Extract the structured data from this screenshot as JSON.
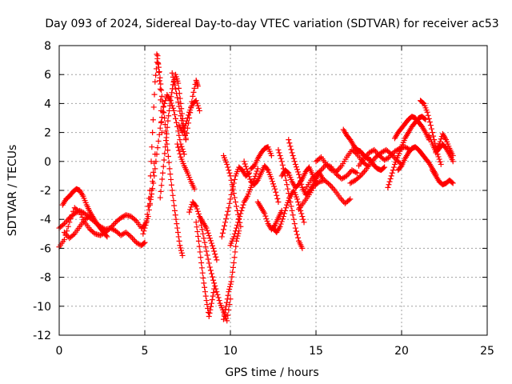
{
  "chart_data": {
    "type": "scatter",
    "title": "Day 093 of 2024, Sidereal Day-to-day VTEC variation (SDTVAR) for receiver ac53",
    "xlabel": "GPS time / hours",
    "ylabel": "SDTVAR / TECUs",
    "xlim": [
      0,
      25
    ],
    "ylim": [
      -12,
      8
    ],
    "xticks": [
      0,
      5,
      10,
      15,
      20,
      25
    ],
    "yticks": [
      -12,
      -10,
      -8,
      -6,
      -4,
      -2,
      0,
      2,
      4,
      6,
      8
    ],
    "xtick_labels": [
      "0",
      "5",
      "10",
      "15",
      "20",
      "25"
    ],
    "ytick_labels": [
      "-12",
      "-10",
      "-8",
      "-6",
      "-4",
      "-2",
      "0",
      "2",
      "4",
      "6",
      "8"
    ],
    "grid": true,
    "marker": "plus",
    "series_color": "#ff0000",
    "series": [
      {
        "name": "SDTVAR",
        "tracks": [
          {
            "x": [
              0.0,
              0.3,
              0.6,
              0.9,
              1.2,
              1.5,
              1.8,
              2.1,
              2.4,
              2.7,
              3.0,
              3.3,
              3.6,
              3.9,
              4.2,
              4.5,
              4.8,
              5.0,
              5.2,
              5.4,
              5.6
            ],
            "y": [
              -4.6,
              -4.3,
              -3.9,
              -3.6,
              -3.4,
              -3.6,
              -3.9,
              -4.2,
              -4.5,
              -4.7,
              -4.6,
              -4.2,
              -3.9,
              -3.7,
              -3.8,
              -4.1,
              -4.6,
              -4.4,
              -3.8,
              -2.0,
              0.5
            ]
          },
          {
            "x": [
              0.0,
              0.3,
              0.6,
              0.9,
              1.2,
              1.5,
              1.8,
              2.1,
              2.4,
              2.7,
              3.0,
              3.3,
              3.6,
              3.9,
              4.2,
              4.5,
              4.8,
              5.0
            ],
            "y": [
              -5.9,
              -5.4,
              -4.2,
              -3.2,
              -3.5,
              -4.2,
              -4.7,
              -5.0,
              -5.1,
              -4.9,
              -4.6,
              -4.8,
              -5.1,
              -4.9,
              -5.2,
              -5.6,
              -5.8,
              -5.6
            ]
          },
          {
            "x": [
              0.2,
              0.4,
              0.6,
              0.8,
              1.0,
              1.2,
              1.4,
              1.6,
              1.8,
              2.0,
              2.2,
              2.4,
              2.6,
              2.8
            ],
            "y": [
              -3.0,
              -2.6,
              -2.4,
              -2.1,
              -1.9,
              -2.0,
              -2.4,
              -3.0,
              -3.5,
              -3.9,
              -4.3,
              -4.6,
              -4.9,
              -5.2
            ]
          },
          {
            "x": [
              0.3,
              0.6,
              0.9,
              1.2,
              1.5,
              1.8
            ],
            "y": [
              -4.9,
              -5.3,
              -5.0,
              -4.5,
              -4.0,
              -3.8
            ]
          },
          {
            "x": [
              4.9,
              5.1,
              5.3,
              5.45,
              5.6,
              5.75,
              5.9,
              6.0
            ],
            "y": [
              -5.0,
              -4.2,
              -2.0,
              2.0,
              5.5,
              7.3,
              5.0,
              2.0
            ]
          },
          {
            "x": [
              5.7,
              5.85,
              6.0,
              6.15,
              6.3,
              6.45,
              6.6,
              6.75,
              6.9,
              7.05,
              7.2
            ],
            "y": [
              7.4,
              6.2,
              4.5,
              3.0,
              1.2,
              -0.5,
              -2.0,
              -3.4,
              -4.6,
              -5.8,
              -6.5
            ]
          },
          {
            "x": [
              5.3,
              5.5,
              5.7,
              5.9,
              6.1,
              6.3,
              6.5,
              6.7,
              6.9,
              7.1,
              7.3
            ],
            "y": [
              -3.0,
              -1.5,
              0.5,
              2.3,
              3.8,
              4.6,
              4.2,
              3.5,
              2.4,
              1.2,
              0.5
            ]
          },
          {
            "x": [
              5.9,
              6.05,
              6.2,
              6.35,
              6.5,
              6.65,
              6.8,
              6.95,
              7.1,
              7.25,
              7.4
            ],
            "y": [
              -2.5,
              -0.8,
              1.0,
              2.8,
              4.2,
              5.3,
              6.0,
              5.4,
              4.0,
              2.6,
              1.5
            ]
          },
          {
            "x": [
              6.6,
              6.8,
              7.0,
              7.2,
              7.4,
              7.6,
              7.8,
              8.0,
              8.1
            ],
            "y": [
              6.1,
              5.0,
              3.8,
              2.5,
              1.6,
              3.0,
              4.5,
              5.6,
              5.2
            ]
          },
          {
            "x": [
              7.0,
              7.2,
              7.4,
              7.6,
              7.8,
              8.0,
              8.2
            ],
            "y": [
              2.5,
              2.0,
              2.6,
              3.4,
              4.0,
              4.2,
              3.5
            ]
          },
          {
            "x": [
              6.9,
              7.1,
              7.3,
              7.5,
              7.7,
              7.9
            ],
            "y": [
              1.2,
              0.3,
              -0.3,
              -0.8,
              -1.4,
              -1.9
            ]
          },
          {
            "x": [
              7.6,
              7.8,
              8.0,
              8.2,
              8.4,
              8.6,
              8.8,
              9.0,
              9.2
            ],
            "y": [
              -3.5,
              -2.8,
              -3.1,
              -3.8,
              -4.2,
              -4.6,
              -5.3,
              -6.0,
              -6.8
            ]
          },
          {
            "x": [
              8.0,
              8.15,
              8.3,
              8.45,
              8.6,
              8.75,
              8.9,
              9.05
            ],
            "y": [
              -4.2,
              -5.5,
              -7.0,
              -8.4,
              -9.6,
              -10.7,
              -9.8,
              -8.8
            ]
          },
          {
            "x": [
              8.2,
              8.4,
              8.6,
              8.8,
              9.0,
              9.2,
              9.4,
              9.6,
              9.8,
              10.0
            ],
            "y": [
              -3.8,
              -5.0,
              -6.2,
              -7.3,
              -8.2,
              -9.0,
              -9.8,
              -10.4,
              -11.0,
              -9.5
            ]
          },
          {
            "x": [
              9.6,
              9.75,
              9.9,
              10.05,
              10.2,
              10.35,
              10.5
            ],
            "y": [
              -10.9,
              -10.0,
              -9.0,
              -8.3,
              -7.0,
              -5.5,
              -4.8
            ]
          },
          {
            "x": [
              9.5,
              9.7,
              9.9,
              10.1,
              10.3,
              10.5,
              10.7,
              10.9,
              11.1
            ],
            "y": [
              -5.2,
              -4.2,
              -3.2,
              -2.0,
              -1.0,
              -0.4,
              -0.6,
              -1.0,
              -0.8
            ]
          },
          {
            "x": [
              9.6,
              9.8,
              10.0,
              10.2,
              10.4,
              10.6
            ],
            "y": [
              0.4,
              -0.2,
              -1.0,
              -2.2,
              -3.4,
              -4.5
            ]
          },
          {
            "x": [
              10.0,
              10.2,
              10.4,
              10.6,
              10.8,
              11.0,
              11.2,
              11.4,
              11.6
            ],
            "y": [
              -5.8,
              -5.2,
              -4.4,
              -3.6,
              -2.8,
              -2.4,
              -1.8,
              -1.2,
              -0.5
            ]
          },
          {
            "x": [
              10.8,
              11.0,
              11.2,
              11.4,
              11.6,
              11.8,
              12.0,
              12.2,
              12.4,
              12.6,
              12.8
            ],
            "y": [
              0.0,
              -0.7,
              -1.4,
              -1.6,
              -1.3,
              -0.8,
              -0.3,
              -0.6,
              -1.2,
              -1.9,
              -2.8
            ]
          },
          {
            "x": [
              11.2,
              11.4,
              11.6,
              11.8,
              12.0,
              12.2,
              12.4
            ],
            "y": [
              -0.5,
              -0.3,
              0.2,
              0.6,
              0.9,
              1.0,
              0.4
            ]
          },
          {
            "x": [
              11.6,
              11.8,
              12.0,
              12.2,
              12.4,
              12.6,
              12.8,
              13.0
            ],
            "y": [
              -2.8,
              -3.2,
              -3.6,
              -4.3,
              -4.7,
              -4.4,
              -3.9,
              -3.4
            ]
          },
          {
            "x": [
              12.8,
              13.0,
              13.2,
              13.4,
              13.6,
              13.8,
              14.0,
              14.2
            ],
            "y": [
              0.8,
              0.0,
              -1.0,
              -2.2,
              -3.4,
              -4.6,
              -5.5,
              -6.0
            ]
          },
          {
            "x": [
              12.5,
              12.7,
              12.9,
              13.1,
              13.3,
              13.5,
              13.7,
              13.9,
              14.1,
              14.3
            ],
            "y": [
              -4.6,
              -4.9,
              -4.5,
              -3.8,
              -3.0,
              -2.4,
              -2.0,
              -2.6,
              -3.4,
              -4.2
            ]
          },
          {
            "x": [
              13.0,
              13.2,
              13.4,
              13.6,
              13.8,
              14.0,
              14.2,
              14.4,
              14.6,
              14.8,
              15.0
            ],
            "y": [
              -1.0,
              -0.6,
              -0.8,
              -1.4,
              -1.8,
              -1.6,
              -1.2,
              -0.7,
              -0.4,
              -0.9,
              -1.5
            ]
          },
          {
            "x": [
              13.4,
              13.6,
              13.8,
              14.0,
              14.2,
              14.4,
              14.6,
              14.8,
              15.0,
              15.2,
              15.4
            ],
            "y": [
              1.5,
              0.6,
              -0.2,
              -0.9,
              -1.8,
              -2.3,
              -2.1,
              -1.7,
              -1.2,
              -0.8,
              -1.2
            ]
          },
          {
            "x": [
              14.0,
              14.3,
              14.6,
              14.9,
              15.2,
              15.5,
              15.8,
              16.1,
              16.4,
              16.7,
              17.0
            ],
            "y": [
              -3.3,
              -2.8,
              -2.3,
              -1.7,
              -1.4,
              -1.3,
              -1.6,
              -2.0,
              -2.5,
              -2.9,
              -2.6
            ]
          },
          {
            "x": [
              14.4,
              14.7,
              15.0,
              15.3,
              15.6,
              15.9,
              16.2,
              16.5,
              16.8,
              17.1,
              17.4
            ],
            "y": [
              -1.9,
              -1.3,
              -0.9,
              -0.6,
              -0.2,
              -0.4,
              -0.9,
              -1.2,
              -1.0,
              -0.6,
              -0.8
            ]
          },
          {
            "x": [
              15.0,
              15.3,
              15.6,
              15.9,
              16.2,
              16.5,
              16.8,
              17.1,
              17.4,
              17.7,
              18.0
            ],
            "y": [
              0.0,
              0.3,
              -0.2,
              -0.6,
              -0.7,
              -0.3,
              0.3,
              0.8,
              0.5,
              0.0,
              -0.3
            ]
          },
          {
            "x": [
              16.6,
              16.8,
              17.0,
              17.2,
              17.4,
              17.6,
              17.8,
              18.0,
              18.2,
              18.4,
              18.6,
              18.8,
              19.0
            ],
            "y": [
              2.2,
              1.8,
              1.5,
              1.1,
              0.8,
              0.7,
              0.4,
              0.2,
              0.1,
              -0.3,
              -0.5,
              -0.6,
              -0.4
            ]
          },
          {
            "x": [
              17.0,
              17.3,
              17.6,
              17.9,
              18.2,
              18.5,
              18.8,
              19.1,
              19.4,
              19.7,
              20.0
            ],
            "y": [
              -1.5,
              -1.3,
              -1.0,
              -0.6,
              -0.1,
              0.3,
              0.6,
              0.8,
              0.5,
              0.1,
              -0.2
            ]
          },
          {
            "x": [
              17.5,
              17.8,
              18.1,
              18.4,
              18.7,
              19.0,
              19.3,
              19.6,
              19.9,
              20.2,
              20.5
            ],
            "y": [
              -0.3,
              0.2,
              0.6,
              0.8,
              0.4,
              0.1,
              0.3,
              0.7,
              0.9,
              1.0,
              0.8
            ]
          },
          {
            "x": [
              19.2,
              19.4,
              19.6,
              19.8,
              20.0,
              20.2,
              20.4,
              20.6,
              20.8,
              21.0,
              21.2,
              21.4
            ],
            "y": [
              -1.8,
              -1.0,
              -0.2,
              0.4,
              1.0,
              1.6,
              2.0,
              2.4,
              2.7,
              3.0,
              3.1,
              2.9
            ]
          },
          {
            "x": [
              19.6,
              19.8,
              20.0,
              20.2,
              20.4,
              20.6,
              20.8,
              21.0,
              21.2,
              21.4,
              21.6
            ],
            "y": [
              1.6,
              2.0,
              2.3,
              2.6,
              2.9,
              3.1,
              3.0,
              2.7,
              2.4,
              2.0,
              1.5
            ]
          },
          {
            "x": [
              19.8,
              20.0,
              20.2,
              20.4,
              20.6,
              20.8,
              21.0,
              21.2,
              21.4,
              21.6,
              21.8,
              22.0
            ],
            "y": [
              -0.6,
              -0.3,
              0.2,
              0.6,
              0.9,
              1.0,
              0.8,
              0.5,
              0.2,
              -0.1,
              -0.5,
              -0.9
            ]
          },
          {
            "x": [
              21.1,
              21.3,
              21.5,
              21.7,
              21.9,
              22.1,
              22.3
            ],
            "y": [
              4.2,
              4.0,
              3.4,
              2.5,
              1.5,
              0.5,
              -0.2
            ]
          },
          {
            "x": [
              21.6,
              21.8,
              22.0,
              22.2,
              22.4,
              22.6,
              22.8,
              23.0
            ],
            "y": [
              1.8,
              1.2,
              0.7,
              1.2,
              1.9,
              1.5,
              0.9,
              0.4
            ]
          },
          {
            "x": [
              21.8,
              22.0,
              22.2,
              22.4,
              22.6,
              22.8,
              23.0
            ],
            "y": [
              -0.6,
              -1.0,
              -1.4,
              -1.6,
              -1.5,
              -1.3,
              -1.5
            ]
          },
          {
            "x": [
              22.0,
              22.2,
              22.4,
              22.6,
              22.8,
              23.0
            ],
            "y": [
              0.6,
              0.9,
              1.2,
              0.9,
              0.5,
              0.0
            ]
          }
        ]
      }
    ]
  }
}
